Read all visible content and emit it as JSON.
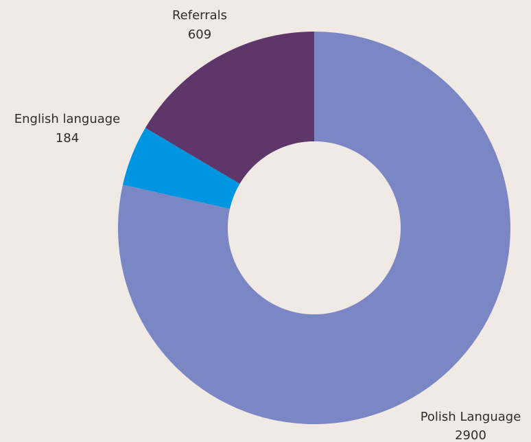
{
  "chart_data": {
    "type": "pie",
    "style": "donut",
    "title": "",
    "slices": [
      {
        "label": "Polish Language",
        "value": 2900,
        "color": "#7b87c5"
      },
      {
        "label": "English language",
        "value": 184,
        "color": "#0095e0"
      },
      {
        "label": "Referrals",
        "value": 609,
        "color": "#5e3669"
      }
    ],
    "legend": "none",
    "start_angle": "12 o'clock",
    "direction": "clockwise"
  },
  "colors": {
    "background": "#f0e9e4",
    "label_text": "#2d2d2d"
  }
}
